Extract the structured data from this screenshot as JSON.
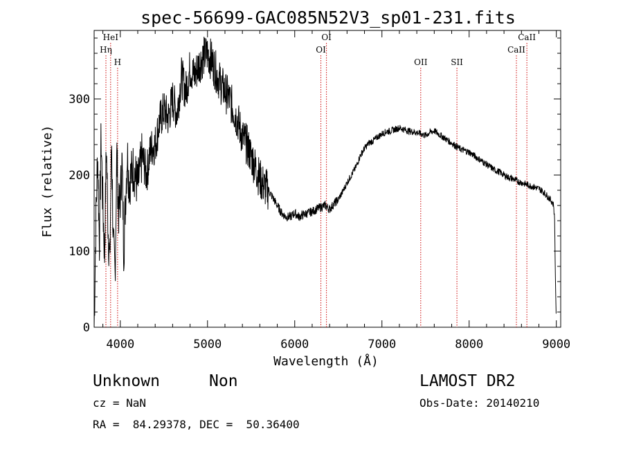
{
  "chart_data": {
    "type": "line",
    "title": "spec-56699-GAC085N52V3_sp01-231.fits",
    "xlabel": "Wavelength (Å)",
    "ylabel": "Flux (relative)",
    "xlim": [
      3700,
      9050
    ],
    "ylim": [
      0,
      390
    ],
    "xticks": [
      4000,
      5000,
      6000,
      7000,
      8000,
      9000
    ],
    "yticks": [
      0,
      100,
      200,
      300
    ],
    "grid": false,
    "line_color": "#000000",
    "marker_color": "#cc0000",
    "series": [
      {
        "x": [
          3700,
          3720,
          3740,
          3760,
          3780,
          3800,
          3820,
          3840,
          3860,
          3880,
          3900,
          3920,
          3940,
          3960,
          3980,
          4000,
          4020,
          4040,
          4060,
          4080,
          4100,
          4150,
          4200,
          4250,
          4300,
          4350,
          4400,
          4450,
          4500,
          4550,
          4600,
          4650,
          4700,
          4750,
          4800,
          4850,
          4900,
          4950,
          5000,
          5050,
          5100,
          5150,
          5200,
          5250,
          5300,
          5350,
          5400,
          5450,
          5500,
          5550,
          5600,
          5650,
          5700,
          5750,
          5800,
          5850,
          5900,
          5950,
          6000,
          6050,
          6100,
          6150,
          6200,
          6250,
          6300,
          6350,
          6400,
          6450,
          6500,
          6550,
          6600,
          6650,
          6700,
          6750,
          6800,
          6850,
          6900,
          6950,
          7000,
          7050,
          7100,
          7150,
          7200,
          7250,
          7300,
          7350,
          7400,
          7450,
          7500,
          7550,
          7600,
          7650,
          7700,
          7750,
          7800,
          7850,
          7900,
          7950,
          8000,
          8050,
          8100,
          8150,
          8200,
          8250,
          8300,
          8350,
          8400,
          8450,
          8500,
          8550,
          8600,
          8650,
          8700,
          8750,
          8800,
          8850,
          8900,
          8950,
          8970,
          8980,
          8985,
          8990,
          8995,
          9000
        ],
        "values": [
          0,
          140,
          230,
          110,
          250,
          160,
          95,
          240,
          130,
          85,
          250,
          105,
          70,
          230,
          150,
          170,
          220,
          100,
          170,
          230,
          190,
          210,
          185,
          225,
          200,
          235,
          240,
          270,
          285,
          275,
          300,
          280,
          330,
          310,
          340,
          330,
          345,
          355,
          360,
          350,
          335,
          320,
          310,
          300,
          285,
          270,
          250,
          240,
          225,
          210,
          195,
          185,
          180,
          170,
          160,
          150,
          145,
          145,
          150,
          145,
          148,
          150,
          152,
          155,
          158,
          160,
          155,
          162,
          168,
          178,
          190,
          200,
          210,
          225,
          235,
          242,
          245,
          250,
          254,
          257,
          258,
          260,
          262,
          260,
          258,
          257,
          256,
          254,
          252,
          256,
          258,
          254,
          250,
          246,
          242,
          238,
          234,
          232,
          230,
          226,
          222,
          218,
          214,
          210,
          206,
          204,
          200,
          197,
          195,
          192,
          190,
          188,
          186,
          184,
          182,
          178,
          172,
          165,
          160,
          140,
          100,
          60,
          30,
          10
        ]
      }
    ],
    "lines": [
      {
        "label": "HeI",
        "x": 3889,
        "level": 1
      },
      {
        "label": "Hη",
        "x": 3835,
        "level": 2
      },
      {
        "label": "H",
        "x": 3969,
        "level": 3
      },
      {
        "label": "OI",
        "x": 6364,
        "level": 1
      },
      {
        "label": "OI",
        "x": 6300,
        "level": 2
      },
      {
        "label": "OII",
        "x": 7445,
        "level": 3
      },
      {
        "label": "SII",
        "x": 7860,
        "level": 3
      },
      {
        "label": "CaII",
        "x": 8662,
        "level": 1
      },
      {
        "label": "CaII",
        "x": 8542,
        "level": 2
      }
    ]
  },
  "info": {
    "classification": "Unknown",
    "subclass": "Non",
    "survey": "LAMOST DR2",
    "cz": "cz = NaN",
    "obs_date": "Obs-Date: 20140210",
    "coords": "RA =  84.29378, DEC =  50.36400"
  }
}
